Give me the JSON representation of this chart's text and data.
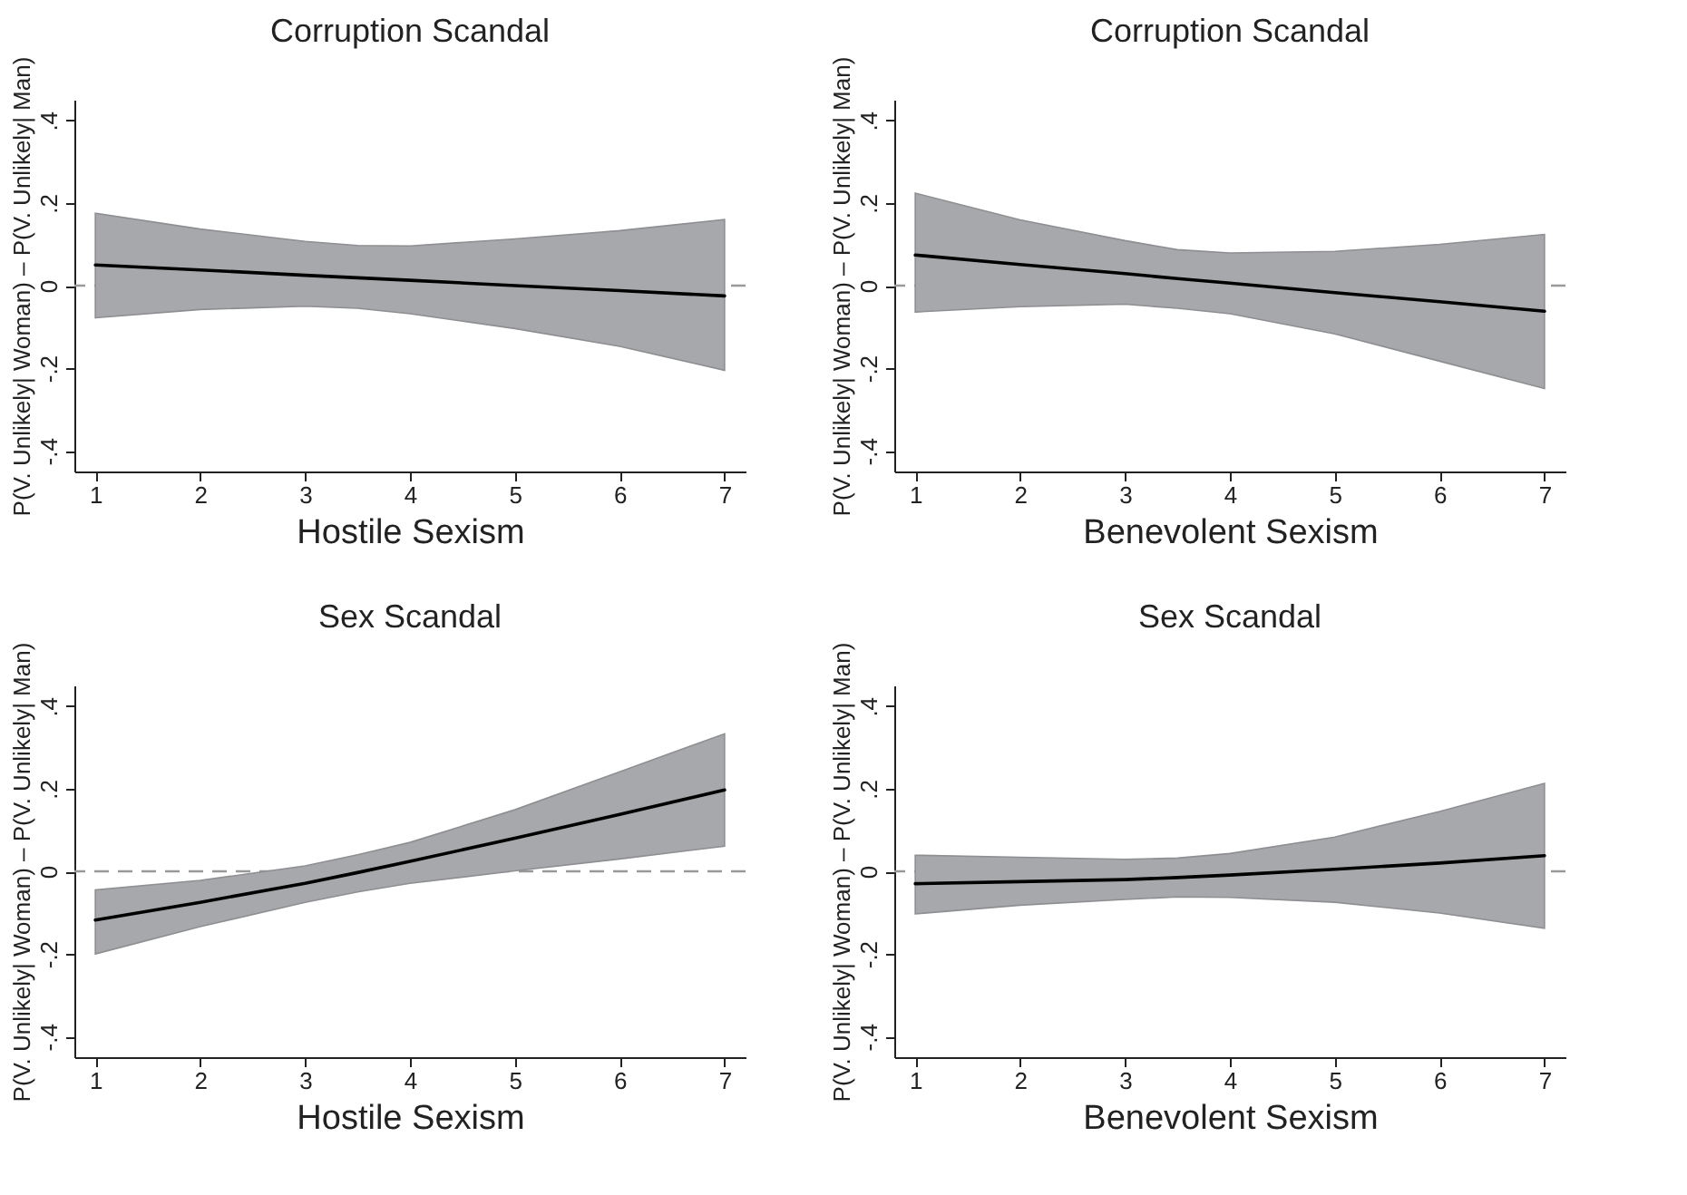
{
  "chart_data": [
    {
      "type": "line",
      "title": "Corruption Scandal",
      "xlabel": "Hostile Sexism",
      "ylabel": "P(V. Unlikely| Woman) – P(V. Unlikely| Man)",
      "xlim": [
        0.8,
        7.2
      ],
      "xticks": [
        1,
        2,
        3,
        4,
        5,
        6,
        7
      ],
      "ylim": [
        -0.45,
        0.45
      ],
      "yticks": [
        {
          "value": -0.4,
          "label": "-.4"
        },
        {
          "value": -0.2,
          "label": "-.2"
        },
        {
          "value": 0,
          "label": "0"
        },
        {
          "value": 0.2,
          "label": ".2"
        },
        {
          "value": 0.4,
          "label": ".4"
        }
      ],
      "grid": false,
      "marker": "none",
      "line_style": "solid",
      "ref_lines": [
        {
          "axis": "y",
          "value": 0,
          "color": "#999999",
          "line_style": "dashed"
        }
      ],
      "series": [
        {
          "color": "#000000",
          "x": [
            1,
            2,
            3,
            3.5,
            4,
            5,
            6,
            7
          ],
          "values": [
            0.05,
            0.038,
            0.025,
            0.019,
            0.013,
            0.0,
            -0.012,
            -0.025
          ],
          "lower": [
            -0.078,
            -0.058,
            -0.05,
            -0.055,
            -0.068,
            -0.104,
            -0.147,
            -0.205
          ],
          "upper": [
            0.175,
            0.137,
            0.107,
            0.097,
            0.096,
            0.113,
            0.133,
            0.16
          ]
        }
      ]
    },
    {
      "type": "line",
      "title": "Corruption Scandal",
      "xlabel": "Benevolent Sexism",
      "ylabel": "P(V. Unlikely| Woman) – P(V. Unlikely| Man)",
      "xlim": [
        0.8,
        7.2
      ],
      "xticks": [
        1,
        2,
        3,
        4,
        5,
        6,
        7
      ],
      "ylim": [
        -0.45,
        0.45
      ],
      "yticks": [
        {
          "value": -0.4,
          "label": "-.4"
        },
        {
          "value": -0.2,
          "label": "-.2"
        },
        {
          "value": 0,
          "label": "0"
        },
        {
          "value": 0.2,
          "label": ".2"
        },
        {
          "value": 0.4,
          "label": ".4"
        }
      ],
      "grid": false,
      "marker": "none",
      "line_style": "solid",
      "ref_lines": [
        {
          "axis": "y",
          "value": 0,
          "color": "#999999",
          "line_style": "dashed"
        }
      ],
      "series": [
        {
          "color": "#000000",
          "x": [
            1,
            2,
            3,
            3.5,
            4,
            5,
            6,
            7
          ],
          "values": [
            0.074,
            0.051,
            0.029,
            0.017,
            0.006,
            -0.017,
            -0.039,
            -0.062
          ],
          "lower": [
            -0.064,
            -0.051,
            -0.045,
            -0.055,
            -0.068,
            -0.117,
            -0.183,
            -0.249
          ],
          "upper": [
            0.224,
            0.159,
            0.109,
            0.087,
            0.079,
            0.083,
            0.1,
            0.124
          ]
        }
      ]
    },
    {
      "type": "line",
      "title": "Sex Scandal",
      "xlabel": "Hostile Sexism",
      "ylabel": "P(V. Unlikely| Woman) – P(V. Unlikely| Man)",
      "xlim": [
        0.8,
        7.2
      ],
      "xticks": [
        1,
        2,
        3,
        4,
        5,
        6,
        7
      ],
      "ylim": [
        -0.45,
        0.45
      ],
      "yticks": [
        {
          "value": -0.4,
          "label": "-.4"
        },
        {
          "value": -0.2,
          "label": "-.2"
        },
        {
          "value": 0,
          "label": "0"
        },
        {
          "value": 0.2,
          "label": ".2"
        },
        {
          "value": 0.4,
          "label": ".4"
        }
      ],
      "grid": false,
      "marker": "none",
      "line_style": "solid",
      "ref_lines": [
        {
          "axis": "y",
          "value": 0,
          "color": "#999999",
          "line_style": "dashed"
        }
      ],
      "series": [
        {
          "color": "#000000",
          "x": [
            1,
            2,
            3,
            3.5,
            4,
            5,
            6,
            7
          ],
          "values": [
            -0.118,
            -0.075,
            -0.029,
            -0.003,
            0.024,
            0.08,
            0.138,
            0.197
          ],
          "lower": [
            -0.2,
            -0.134,
            -0.075,
            -0.05,
            -0.029,
            0.001,
            0.03,
            0.061
          ],
          "upper": [
            -0.045,
            -0.022,
            0.013,
            0.04,
            0.07,
            0.149,
            0.241,
            0.333
          ]
        }
      ]
    },
    {
      "type": "line",
      "title": "Sex Scandal",
      "xlabel": "Benevolent Sexism",
      "ylabel": "P(V. Unlikely| Woman) – P(V. Unlikely| Man)",
      "xlim": [
        0.8,
        7.2
      ],
      "xticks": [
        1,
        2,
        3,
        4,
        5,
        6,
        7
      ],
      "ylim": [
        -0.45,
        0.45
      ],
      "yticks": [
        {
          "value": -0.4,
          "label": "-.4"
        },
        {
          "value": -0.2,
          "label": "-.2"
        },
        {
          "value": 0,
          "label": "0"
        },
        {
          "value": 0.2,
          "label": ".2"
        },
        {
          "value": 0.4,
          "label": ".4"
        }
      ],
      "grid": false,
      "marker": "none",
      "line_style": "solid",
      "ref_lines": [
        {
          "axis": "y",
          "value": 0,
          "color": "#999999",
          "line_style": "dashed"
        }
      ],
      "series": [
        {
          "color": "#000000",
          "x": [
            1,
            2,
            3,
            3.5,
            4,
            5,
            6,
            7
          ],
          "values": [
            -0.03,
            -0.025,
            -0.02,
            -0.015,
            -0.009,
            0.005,
            0.02,
            0.038
          ],
          "lower": [
            -0.103,
            -0.082,
            -0.068,
            -0.062,
            -0.063,
            -0.075,
            -0.101,
            -0.138
          ],
          "upper": [
            0.039,
            0.034,
            0.029,
            0.032,
            0.043,
            0.083,
            0.145,
            0.213
          ]
        }
      ]
    }
  ]
}
